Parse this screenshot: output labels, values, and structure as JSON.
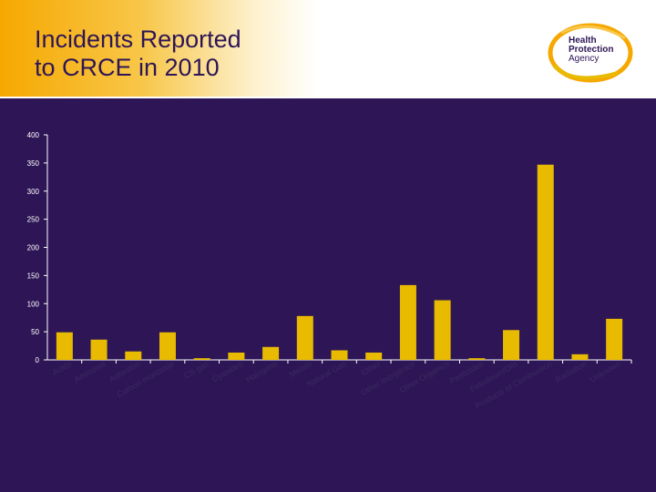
{
  "title": {
    "line1": "Incidents Reported",
    "line2": "to CRCE in 2010"
  },
  "logo": {
    "line1": "Health",
    "line2": "Protection",
    "line3": "Agency"
  },
  "colors": {
    "background": "#2e1656",
    "bar": "#e8ba00",
    "accent": "#f6a800"
  },
  "chart_data": {
    "type": "bar",
    "title": "Incidents Reported to CRCE in 2010",
    "xlabel": "",
    "ylabel": "",
    "ylim": [
      0,
      400
    ],
    "yticks": [
      0,
      50,
      100,
      150,
      200,
      250,
      300,
      350,
      400
    ],
    "grid": false,
    "categories": [
      "Acids",
      "Ammonia",
      "Asbestos",
      "Carbon monoxide",
      "CS gas",
      "Cyanides",
      "Halogens",
      "Metals",
      "Natural Gas",
      "Other",
      "Other Inorganics",
      "Other Organics",
      "Pesticides",
      "Petroleum/Oils",
      "Products of Combustion",
      "Radiation",
      "Unknown"
    ],
    "values": [
      49,
      36,
      15,
      49,
      3,
      13,
      23,
      78,
      17,
      13,
      133,
      106,
      3,
      53,
      347,
      10,
      73
    ]
  }
}
